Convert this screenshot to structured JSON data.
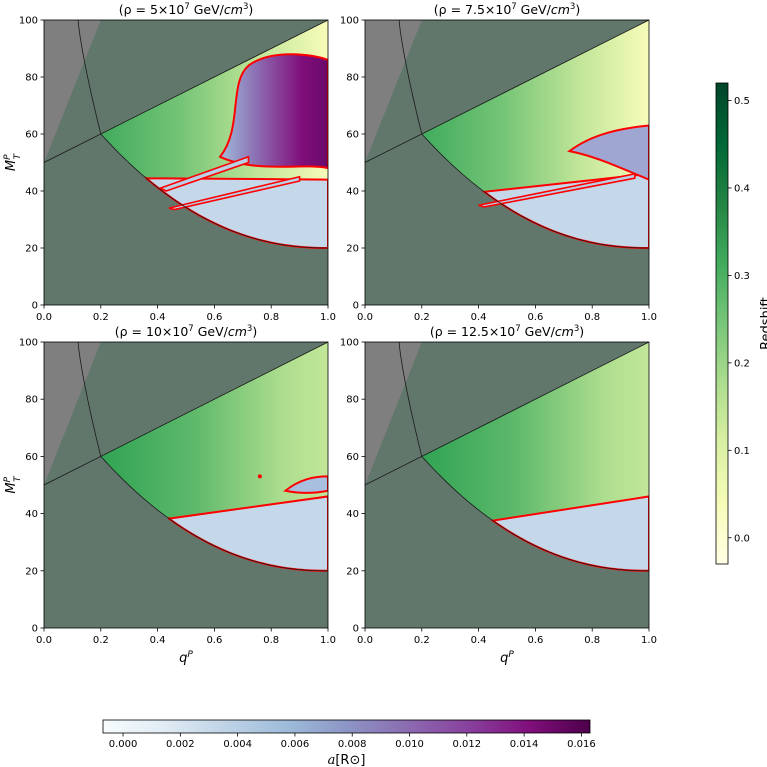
{
  "figure": {
    "colors": {
      "background_mask": "#62776b",
      "overlap_mask": "#7f7f7f",
      "contour": "#ff0000",
      "mass_region": "#c5d8ea"
    }
  },
  "chart_data": [
    {
      "type": "heatmap",
      "title": "(ρ = 5×10⁷ GeV/cm³)",
      "title_main": "(ρ = 5×10",
      "title_exp": "7",
      "title_unit": " GeV/",
      "title_unit_italic": "cm",
      "title_unit_exp": "3",
      "title_close": ")",
      "xlabel": "",
      "ylabel": "M_T^P",
      "xlim": [
        0,
        1
      ],
      "ylim": [
        0,
        100
      ],
      "xticks": [
        "0.0",
        "0.2",
        "0.4",
        "0.6",
        "0.8",
        "1.0"
      ],
      "yticks": [
        "0",
        "20",
        "40",
        "60",
        "80",
        "100"
      ],
      "grid": false
    },
    {
      "type": "heatmap",
      "title": "(ρ = 7.5×10⁷ GeV/cm³)",
      "title_main": "(ρ = 7.5×10",
      "title_exp": "7",
      "title_unit": " GeV/",
      "title_unit_italic": "cm",
      "title_unit_exp": "3",
      "title_close": ")",
      "xlabel": "",
      "ylabel": "",
      "xlim": [
        0,
        1
      ],
      "ylim": [
        0,
        100
      ],
      "xticks": [
        "0.0",
        "0.2",
        "0.4",
        "0.6",
        "0.8",
        "1.0"
      ],
      "yticks": [
        "0",
        "20",
        "40",
        "60",
        "80",
        "100"
      ],
      "grid": false
    },
    {
      "type": "heatmap",
      "title": "(ρ = 10×10⁷ GeV/cm³)",
      "title_main": "(ρ = 10×10",
      "title_exp": "7",
      "title_unit": " GeV/",
      "title_unit_italic": "cm",
      "title_unit_exp": "3",
      "title_close": ")",
      "xlabel": "q^P",
      "ylabel": "M_T^P",
      "xlim": [
        0,
        1
      ],
      "ylim": [
        0,
        100
      ],
      "xticks": [
        "0.0",
        "0.2",
        "0.4",
        "0.6",
        "0.8",
        "1.0"
      ],
      "yticks": [
        "0",
        "20",
        "40",
        "60",
        "80",
        "100"
      ],
      "grid": false
    },
    {
      "type": "heatmap",
      "title": "(ρ = 12.5×10⁷ GeV/cm³)",
      "title_main": "(ρ = 12.5×10",
      "title_exp": "7",
      "title_unit": " GeV/",
      "title_unit_italic": "cm",
      "title_unit_exp": "3",
      "title_close": ")",
      "xlabel": "q^P",
      "ylabel": "",
      "xlim": [
        0,
        1
      ],
      "ylim": [
        0,
        100
      ],
      "xticks": [
        "0.0",
        "0.2",
        "0.4",
        "0.6",
        "0.8",
        "1.0"
      ],
      "yticks": [
        "0",
        "20",
        "40",
        "60",
        "80",
        "100"
      ],
      "grid": false
    }
  ],
  "axis_labels": {
    "y_main": "M",
    "y_sub": "T",
    "y_sup": "P",
    "x_main": "q",
    "x_sup": "P"
  },
  "colorbar_redshift": {
    "label": "Redshift",
    "ticks": [
      "0.0",
      "0.1",
      "0.2",
      "0.3",
      "0.4",
      "0.5"
    ],
    "range": [
      -0.03,
      0.52
    ],
    "colormap": [
      "#ffffe5",
      "#f7fcb9",
      "#d9f0a3",
      "#addd8e",
      "#78c679",
      "#41ab5d",
      "#238443",
      "#006837",
      "#004529"
    ]
  },
  "colorbar_radius": {
    "label_main": "a",
    "label_unit": "[R⊙]",
    "ticks": [
      "0.000",
      "0.002",
      "0.004",
      "0.006",
      "0.008",
      "0.010",
      "0.012",
      "0.014",
      "0.016"
    ],
    "range": [
      -0.0007,
      0.0163
    ],
    "colormap": [
      "#f7fcfd",
      "#e0ecf4",
      "#bfd3e6",
      "#9ebcda",
      "#8c96c6",
      "#8c6bb1",
      "#88419d",
      "#810f7c",
      "#4d004b"
    ]
  }
}
